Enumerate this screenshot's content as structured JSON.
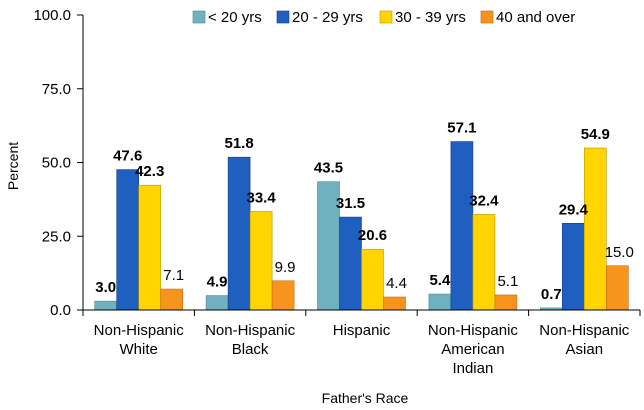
{
  "chart_data": {
    "type": "bar",
    "xlabel": "Father's Race",
    "ylabel": "Percent",
    "ylim": [
      0,
      100
    ],
    "yticks": [
      "0.0",
      "25.0",
      "50.0",
      "75.0",
      "100.0"
    ],
    "ytick_values": [
      0,
      25,
      50,
      75,
      100
    ],
    "legend_position": "top",
    "categories": [
      [
        "Non-Hispanic",
        "White"
      ],
      [
        "Non-Hispanic",
        "Black"
      ],
      [
        "Hispanic"
      ],
      [
        "Non-Hispanic",
        "American",
        "Indian"
      ],
      [
        "Non-Hispanic",
        "Asian"
      ]
    ],
    "series": [
      {
        "name": "< 20 yrs",
        "color": "#6fb1bf",
        "stroke": "#4a8a98",
        "values": [
          3.0,
          4.9,
          43.5,
          5.4,
          0.7
        ],
        "labels": [
          "3.0",
          "4.9",
          "43.5",
          "5.4",
          "0.7"
        ],
        "bold": true
      },
      {
        "name": "20 - 29 yrs",
        "color": "#1f5fbf",
        "stroke": "#153f80",
        "values": [
          47.6,
          51.8,
          31.5,
          57.1,
          29.4
        ],
        "labels": [
          "47.6",
          "51.8",
          "31.5",
          "57.1",
          "29.4"
        ],
        "bold": true
      },
      {
        "name": "30 - 39 yrs",
        "color": "#ffd400",
        "stroke": "#b89800",
        "values": [
          42.3,
          33.4,
          20.6,
          32.4,
          54.9
        ],
        "labels": [
          "42.3",
          "33.4",
          "20.6",
          "32.4",
          "54.9"
        ],
        "bold": true
      },
      {
        "name": "40 and over",
        "color": "#f7941d",
        "stroke": "#c06c10",
        "values": [
          7.1,
          9.9,
          4.4,
          5.1,
          15.0
        ],
        "labels": [
          "7.1",
          "9.9",
          "4.4",
          "5.1",
          "15.0"
        ],
        "bold": false
      }
    ]
  }
}
